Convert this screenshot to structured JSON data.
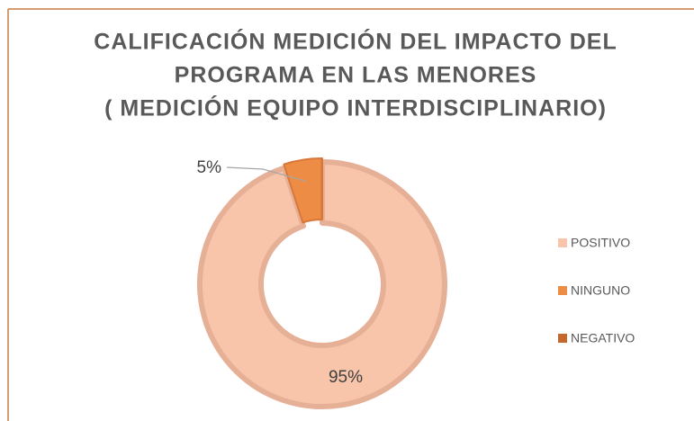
{
  "chart_data": {
    "type": "donut",
    "title": [
      "CALIFICACIÓN MEDICIÓN DEL IMPACTO DEL",
      "PROGRAMA EN LAS MENORES",
      "( MEDICIÓN EQUIPO INTERDISCIPLINARIO)"
    ],
    "categories": [
      "POSITIVO",
      "NINGUNO",
      "NEGATIVO"
    ],
    "values": [
      95,
      5,
      0
    ],
    "value_labels": [
      "95%",
      "5%",
      null
    ],
    "colors": [
      "#f8c4aa",
      "#ed8d45",
      "#c5682b"
    ],
    "legend": "right"
  }
}
